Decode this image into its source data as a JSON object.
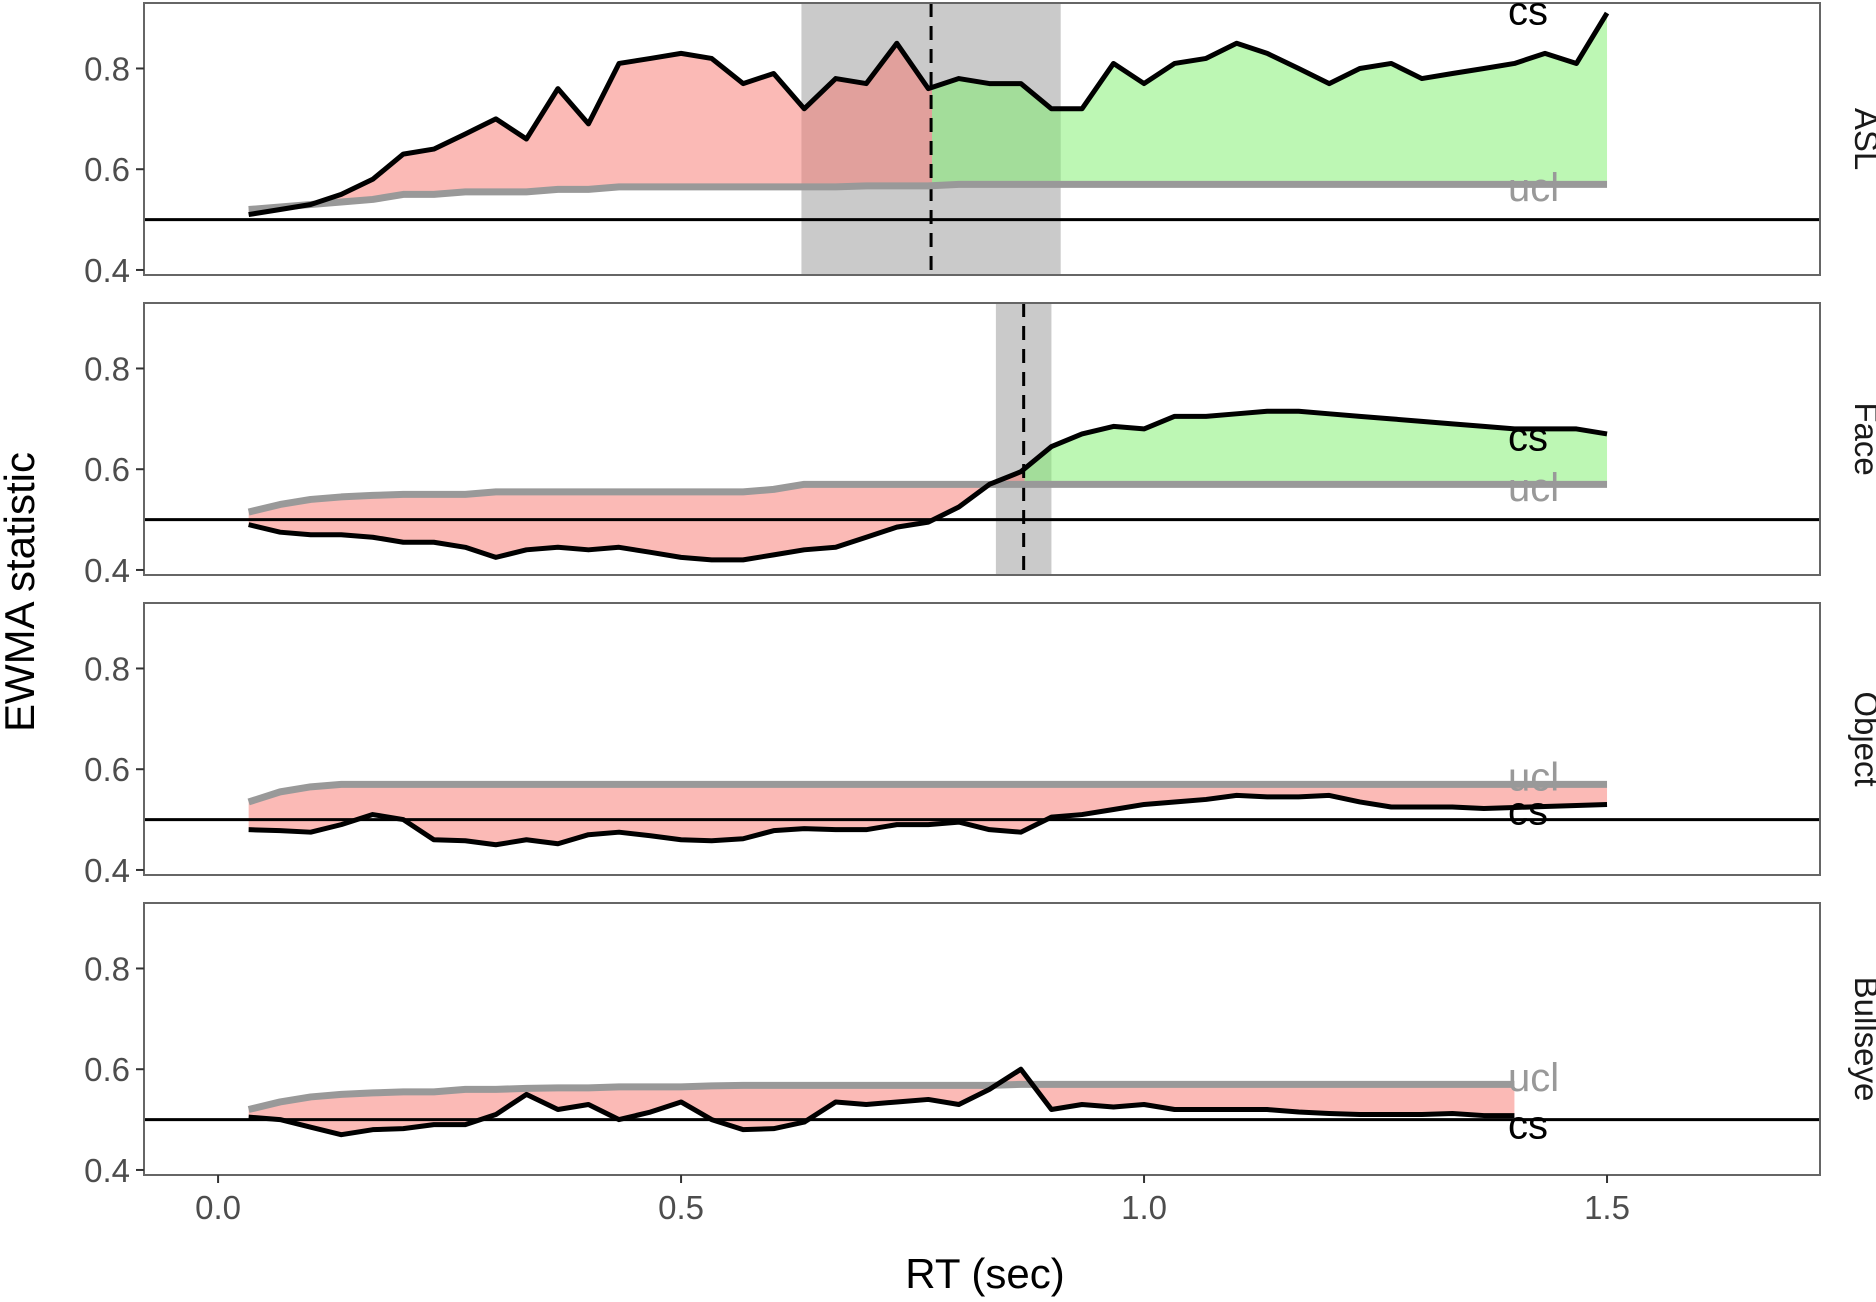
{
  "chart_data": {
    "type": "line",
    "xlabel": "RT (sec)",
    "ylabel": "EWMA statistic",
    "xlim": [
      -0.08,
      1.73
    ],
    "ylim": [
      0.39,
      0.93
    ],
    "x_ticks": [
      0.0,
      0.5,
      1.0,
      1.5
    ],
    "x_tick_labels": [
      "0.0",
      "0.5",
      "1.0",
      "1.5"
    ],
    "y_ticks": [
      0.4,
      0.6,
      0.8
    ],
    "y_tick_labels": [
      "0.4",
      "0.6",
      "0.8"
    ],
    "reference_line": 0.5,
    "grid": false,
    "colors": {
      "cs_line": "#000000",
      "ucl_line": "#999999",
      "below_fill": "#f8766d",
      "above_fill": "#7cf06a",
      "onset_band": "#b3b3b3",
      "panel_border": "#666666"
    },
    "series_labels": {
      "cs": "cs",
      "ucl": "ucl"
    },
    "panels": [
      {
        "strip": "ASL",
        "onset": {
          "x": 0.77,
          "band": [
            0.63,
            0.91
          ]
        },
        "cs": {
          "x": [
            0.033,
            0.067,
            0.1,
            0.133,
            0.167,
            0.2,
            0.233,
            0.267,
            0.3,
            0.333,
            0.367,
            0.4,
            0.433,
            0.467,
            0.5,
            0.533,
            0.567,
            0.6,
            0.633,
            0.667,
            0.7,
            0.733,
            0.767,
            0.8,
            0.833,
            0.867,
            0.9,
            0.933,
            0.967,
            1.0,
            1.033,
            1.067,
            1.1,
            1.133,
            1.167,
            1.2,
            1.233,
            1.267,
            1.3,
            1.333,
            1.367,
            1.4,
            1.433,
            1.467,
            1.5
          ],
          "y": [
            0.51,
            0.52,
            0.53,
            0.55,
            0.58,
            0.63,
            0.64,
            0.67,
            0.7,
            0.66,
            0.76,
            0.69,
            0.81,
            0.82,
            0.83,
            0.82,
            0.77,
            0.79,
            0.72,
            0.78,
            0.77,
            0.85,
            0.76,
            0.78,
            0.77,
            0.77,
            0.72,
            0.72,
            0.81,
            0.77,
            0.81,
            0.82,
            0.85,
            0.83,
            0.8,
            0.77,
            0.8,
            0.81,
            0.78,
            0.79,
            0.8,
            0.81,
            0.83,
            0.81,
            0.91
          ]
        },
        "ucl": {
          "x": [
            0.033,
            0.067,
            0.1,
            0.133,
            0.167,
            0.2,
            0.233,
            0.267,
            0.3,
            0.333,
            0.367,
            0.4,
            0.433,
            0.467,
            0.5,
            0.533,
            0.567,
            0.6,
            0.633,
            0.667,
            0.7,
            0.733,
            0.767,
            0.8,
            1.5
          ],
          "y": [
            0.52,
            0.525,
            0.53,
            0.535,
            0.54,
            0.55,
            0.55,
            0.555,
            0.555,
            0.555,
            0.56,
            0.56,
            0.565,
            0.565,
            0.565,
            0.565,
            0.565,
            0.565,
            0.565,
            0.565,
            0.567,
            0.567,
            0.567,
            0.57,
            0.57
          ]
        },
        "cs_label_y": 0.915,
        "ucl_label_y": 0.565
      },
      {
        "strip": "Face",
        "onset": {
          "x": 0.87,
          "band": [
            0.84,
            0.9
          ]
        },
        "cs": {
          "x": [
            0.033,
            0.067,
            0.1,
            0.133,
            0.167,
            0.2,
            0.233,
            0.267,
            0.3,
            0.333,
            0.367,
            0.4,
            0.433,
            0.467,
            0.5,
            0.533,
            0.567,
            0.6,
            0.633,
            0.667,
            0.7,
            0.733,
            0.767,
            0.8,
            0.833,
            0.867,
            0.9,
            0.933,
            0.967,
            1.0,
            1.033,
            1.067,
            1.1,
            1.133,
            1.167,
            1.2,
            1.233,
            1.267,
            1.3,
            1.333,
            1.367,
            1.4,
            1.433,
            1.467,
            1.5
          ],
          "y": [
            0.49,
            0.475,
            0.47,
            0.47,
            0.465,
            0.455,
            0.455,
            0.445,
            0.425,
            0.44,
            0.445,
            0.44,
            0.445,
            0.435,
            0.425,
            0.42,
            0.42,
            0.43,
            0.44,
            0.445,
            0.465,
            0.485,
            0.495,
            0.525,
            0.57,
            0.595,
            0.645,
            0.67,
            0.685,
            0.68,
            0.705,
            0.705,
            0.71,
            0.715,
            0.715,
            0.71,
            0.705,
            0.7,
            0.695,
            0.69,
            0.685,
            0.68,
            0.68,
            0.68,
            0.67
          ]
        },
        "ucl": {
          "x": [
            0.033,
            0.067,
            0.1,
            0.133,
            0.167,
            0.2,
            0.233,
            0.267,
            0.3,
            0.333,
            0.567,
            0.6,
            0.633,
            1.5
          ],
          "y": [
            0.515,
            0.53,
            0.54,
            0.545,
            0.548,
            0.55,
            0.55,
            0.55,
            0.555,
            0.555,
            0.555,
            0.56,
            0.57,
            0.57
          ]
        },
        "cs_label_y": 0.665,
        "ucl_label_y": 0.565
      },
      {
        "strip": "Object",
        "onset": null,
        "cs": {
          "x": [
            0.033,
            0.067,
            0.1,
            0.133,
            0.167,
            0.2,
            0.233,
            0.267,
            0.3,
            0.333,
            0.367,
            0.4,
            0.433,
            0.467,
            0.5,
            0.533,
            0.567,
            0.6,
            0.633,
            0.667,
            0.7,
            0.733,
            0.767,
            0.8,
            0.833,
            0.867,
            0.9,
            0.933,
            0.967,
            1.0,
            1.033,
            1.067,
            1.1,
            1.133,
            1.167,
            1.2,
            1.233,
            1.267,
            1.3,
            1.333,
            1.367,
            1.4,
            1.433,
            1.467,
            1.5
          ],
          "y": [
            0.48,
            0.478,
            0.475,
            0.49,
            0.51,
            0.5,
            0.46,
            0.458,
            0.45,
            0.46,
            0.452,
            0.47,
            0.475,
            0.468,
            0.46,
            0.458,
            0.462,
            0.478,
            0.482,
            0.48,
            0.48,
            0.49,
            0.49,
            0.495,
            0.48,
            0.475,
            0.505,
            0.51,
            0.52,
            0.53,
            0.535,
            0.54,
            0.548,
            0.545,
            0.545,
            0.548,
            0.535,
            0.525,
            0.525,
            0.525,
            0.522,
            0.524,
            0.526,
            0.528,
            0.53
          ]
        },
        "ucl": {
          "x": [
            0.033,
            0.067,
            0.1,
            0.133,
            0.167,
            1.5
          ],
          "y": [
            0.535,
            0.555,
            0.565,
            0.57,
            0.57,
            0.57
          ]
        },
        "cs_label_y": 0.518,
        "ucl_label_y": 0.586
      },
      {
        "strip": "Bullseye",
        "onset": null,
        "cs": {
          "x": [
            0.033,
            0.067,
            0.1,
            0.133,
            0.167,
            0.2,
            0.233,
            0.267,
            0.3,
            0.333,
            0.367,
            0.4,
            0.433,
            0.467,
            0.5,
            0.533,
            0.567,
            0.6,
            0.633,
            0.667,
            0.7,
            0.733,
            0.767,
            0.8,
            0.833,
            0.867,
            0.9,
            0.933,
            0.967,
            1.0,
            1.033,
            1.067,
            1.1,
            1.133,
            1.167,
            1.2,
            1.233,
            1.267,
            1.3,
            1.333,
            1.367,
            1.4
          ],
          "y": [
            0.505,
            0.5,
            0.485,
            0.47,
            0.48,
            0.482,
            0.49,
            0.49,
            0.51,
            0.55,
            0.52,
            0.53,
            0.5,
            0.515,
            0.535,
            0.5,
            0.48,
            0.482,
            0.495,
            0.535,
            0.53,
            0.535,
            0.54,
            0.53,
            0.56,
            0.6,
            0.52,
            0.53,
            0.525,
            0.53,
            0.52,
            0.52,
            0.52,
            0.52,
            0.515,
            0.512,
            0.51,
            0.51,
            0.51,
            0.512,
            0.508,
            0.508
          ]
        },
        "ucl": {
          "x": [
            0.033,
            0.067,
            0.1,
            0.133,
            0.167,
            0.2,
            0.233,
            0.267,
            0.3,
            0.333,
            0.367,
            0.4,
            0.433,
            0.467,
            0.5,
            0.533,
            0.567,
            0.6,
            0.633,
            0.667,
            0.7,
            0.733,
            0.767,
            0.8,
            0.833,
            0.867,
            1.4
          ],
          "y": [
            0.52,
            0.535,
            0.545,
            0.55,
            0.553,
            0.555,
            0.555,
            0.56,
            0.56,
            0.562,
            0.563,
            0.563,
            0.565,
            0.565,
            0.565,
            0.567,
            0.568,
            0.568,
            0.568,
            0.568,
            0.568,
            0.568,
            0.568,
            0.568,
            0.568,
            0.57,
            0.57
          ]
        },
        "cs_label_y": 0.49,
        "ucl_label_y": 0.585
      }
    ]
  }
}
